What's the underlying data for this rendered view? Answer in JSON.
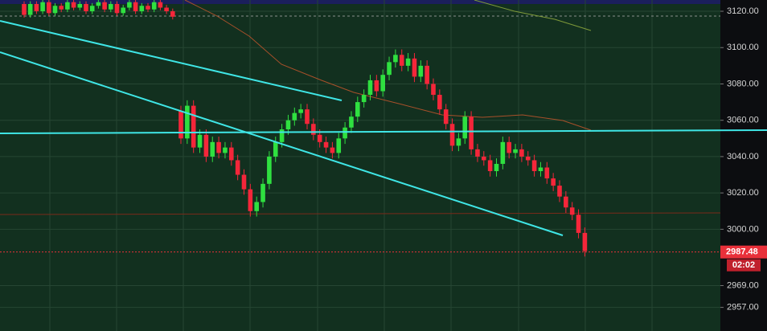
{
  "chart_data": {
    "type": "candlestick",
    "series": {
      "open": [
        3124,
        3118,
        3124,
        3120,
        3125,
        3119,
        3123,
        3121,
        3125,
        3122,
        3124,
        3120,
        3123,
        3125,
        3121,
        3124,
        3119,
        3122,
        3125,
        3120,
        3123,
        3121,
        3125,
        3122,
        3120,
        3065,
        3050,
        3068,
        3045,
        3052,
        3040,
        3048,
        3042,
        3045,
        3038,
        3030,
        3022,
        3010,
        3015,
        3025,
        3040,
        3048,
        3055,
        3060,
        3064,
        3066,
        3058,
        3052,
        3048,
        3045,
        3042,
        3050,
        3056,
        3062,
        3070,
        3074,
        3082,
        3076,
        3085,
        3092,
        3096,
        3090,
        3094,
        3084,
        3090,
        3080,
        3074,
        3066,
        3058,
        3046,
        3050,
        3062,
        3044,
        3040,
        3038,
        3032,
        3036,
        3048,
        3042,
        3044,
        3040,
        3038,
        3032,
        3034,
        3028,
        3024,
        3018,
        3012,
        3008,
        2998
      ],
      "high": [
        3125.5,
        3125.5,
        3125.5,
        3126.5,
        3126.5,
        3124.5,
        3124.5,
        3126.5,
        3126.5,
        3125.5,
        3125.5,
        3124.5,
        3126.5,
        3126.5,
        3125.5,
        3125.5,
        3123.5,
        3126.5,
        3126.5,
        3124.5,
        3124.5,
        3126.5,
        3126.5,
        3123.5,
        3121.5,
        3068,
        3071,
        3071,
        3055,
        3055,
        3051,
        3051,
        3048,
        3048,
        3041,
        3033,
        3025,
        3018,
        3028,
        3043,
        3051,
        3058,
        3063,
        3067,
        3069,
        3069,
        3061,
        3055,
        3051,
        3048,
        3053,
        3059,
        3065,
        3073,
        3077,
        3085,
        3085,
        3088,
        3095,
        3099,
        3099,
        3097,
        3097,
        3093,
        3093,
        3083,
        3077,
        3069,
        3061,
        3053,
        3065,
        3065,
        3047,
        3043,
        3041,
        3039,
        3051,
        3051,
        3047,
        3047,
        3043,
        3041,
        3037,
        3037,
        3031,
        3027,
        3021,
        3015,
        3011,
        3001
      ],
      "low": [
        3116.5,
        3116.5,
        3118.5,
        3118.5,
        3117.5,
        3117.5,
        3119.5,
        3119.5,
        3120.5,
        3120.5,
        3118.5,
        3118.5,
        3121.5,
        3119.5,
        3119.5,
        3117.5,
        3117.5,
        3120.5,
        3118.5,
        3118.5,
        3119.5,
        3119.5,
        3120.5,
        3118.5,
        3115.5,
        3047,
        3047,
        3042,
        3042,
        3037,
        3037,
        3039,
        3039,
        3035,
        3027,
        3019,
        3007,
        3007,
        3012,
        3022,
        3037,
        3045,
        3052,
        3057,
        3061,
        3055,
        3049,
        3045,
        3042,
        3039,
        3039,
        3047,
        3053,
        3059,
        3067,
        3071,
        3073,
        3073,
        3082,
        3089,
        3087,
        3087,
        3081,
        3081,
        3077,
        3071,
        3063,
        3055,
        3043,
        3043,
        3047,
        3041,
        3037,
        3035,
        3029,
        3029,
        3033,
        3039,
        3039,
        3037,
        3035,
        3029,
        3029,
        3025,
        3021,
        3015,
        3009,
        3005,
        2995,
        2985
      ],
      "close": [
        3118,
        3124,
        3120,
        3125,
        3119,
        3123,
        3121,
        3125,
        3122,
        3124,
        3120,
        3123,
        3125,
        3121,
        3124,
        3119,
        3122,
        3125,
        3120,
        3123,
        3121,
        3125,
        3122,
        3120,
        3117,
        3050,
        3068,
        3045,
        3052,
        3040,
        3048,
        3042,
        3045,
        3038,
        3030,
        3022,
        3010,
        3015,
        3025,
        3040,
        3048,
        3055,
        3060,
        3064,
        3066,
        3058,
        3052,
        3048,
        3045,
        3042,
        3050,
        3056,
        3062,
        3070,
        3074,
        3082,
        3076,
        3085,
        3092,
        3096,
        3090,
        3094,
        3084,
        3090,
        3080,
        3074,
        3066,
        3058,
        3046,
        3050,
        3062,
        3044,
        3040,
        3038,
        3032,
        3036,
        3048,
        3042,
        3044,
        3040,
        3038,
        3032,
        3034,
        3028,
        3024,
        3018,
        3012,
        3008,
        2998,
        2988
      ]
    },
    "up_color": "#2fe040",
    "down_color": "#f5263a",
    "ylim": [
      2944,
      3126.2
    ],
    "yticks": [
      {
        "value": 3120,
        "label": "3120.00"
      },
      {
        "value": 3100,
        "label": "3100.00"
      },
      {
        "value": 3080,
        "label": "3080.00"
      },
      {
        "value": 3060,
        "label": "3060.00"
      },
      {
        "value": 3040,
        "label": "3040.00"
      },
      {
        "value": 3020,
        "label": "3020.00"
      },
      {
        "value": 3000,
        "label": "3000.00"
      },
      {
        "value": 2969,
        "label": "2969.00"
      },
      {
        "value": 2957,
        "label": "2957.00"
      }
    ],
    "grid": true,
    "last_price": 2987.48,
    "countdown": "02:02"
  }
}
